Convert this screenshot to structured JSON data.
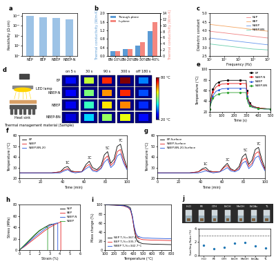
{
  "chart_data": [
    {
      "panel": "a",
      "type": "bar",
      "categories": [
        "NEP",
        "BEP",
        "NBEP",
        "NBEP-N"
      ],
      "values": [
        1.2e+16,
        2000000000000000.0,
        1500000000000000.0,
        400000000000000.0
      ],
      "color": "#9dc3e6",
      "ylabel": "Resistivity (Ω·cm)",
      "log": "y",
      "ylim": [
        1,
        1e+17
      ],
      "yticks": [
        {
          "value": 1,
          "label": "10⁰"
        },
        {
          "value": 10000,
          "label": "10⁴"
        },
        {
          "value": 100000000.0,
          "label": "10⁸"
        },
        {
          "value": 1000000000000.0,
          "label": "10¹²"
        },
        {
          "value": 1e+16,
          "label": "10¹⁶"
        }
      ]
    },
    {
      "panel": "b",
      "type": "bar",
      "categories": [
        "BN-10%",
        "BN-20%",
        "BN-30%",
        "BN-40%"
      ],
      "series": [
        {
          "name": "Through-plane",
          "color": "#5b9bd5",
          "values": [
            0.22,
            0.32,
            0.48,
            1.15
          ]
        },
        {
          "name": "In-plane",
          "color": "#f4877f",
          "values": [
            1.6,
            2.3,
            4.6,
            11.2
          ],
          "axis": "y2"
        }
      ],
      "ylabel": "Thermal conductivity (W/m·K)",
      "y2label": "Thermal conductivity (W/m·K)",
      "ylim": [
        0.0,
        2.0
      ],
      "yticks": [
        0.0,
        0.4,
        0.8,
        1.2,
        1.6,
        2.0
      ],
      "y2lim": [
        0,
        14
      ],
      "y2ticks": [
        0,
        2,
        4,
        6,
        8,
        10,
        12,
        14
      ],
      "legend": "upper left"
    },
    {
      "panel": "c",
      "type": "line",
      "xlabel": "Frequency (Hz)",
      "ylabel": "Dielectric constant",
      "log": "x",
      "x": [
        100,
        300,
        1000,
        3000,
        10000,
        30000,
        100000,
        300000,
        1000000
      ],
      "xlim": [
        100,
        1000000
      ],
      "xticks": [
        {
          "value": 100,
          "label": "10²"
        },
        {
          "value": 1000,
          "label": "10³"
        },
        {
          "value": 10000,
          "label": "10⁴"
        },
        {
          "value": 100000,
          "label": "10⁵"
        },
        {
          "value": 1000000,
          "label": "10⁶"
        }
      ],
      "ylim": [
        2.5,
        5.0
      ],
      "yticks": [
        2.5,
        3.0,
        3.5,
        4.0,
        4.5,
        5.0
      ],
      "legend": "upper right",
      "series": [
        {
          "name": "NEP",
          "color": "#f08080",
          "values": [
            3.95,
            3.9,
            3.85,
            3.8,
            3.75,
            3.7,
            3.65,
            3.6,
            3.55
          ]
        },
        {
          "name": "BEP",
          "color": "#f4a460",
          "values": [
            4.35,
            4.3,
            4.25,
            4.2,
            4.15,
            4.1,
            4.05,
            4.0,
            3.95
          ]
        },
        {
          "name": "NBEP",
          "color": "#6495ed",
          "values": [
            3.55,
            3.5,
            3.45,
            3.4,
            3.35,
            3.3,
            3.25,
            3.2,
            3.15
          ]
        },
        {
          "name": "NBEP-BN",
          "color": "#66cdaa",
          "values": [
            3.2,
            3.15,
            3.1,
            3.05,
            3.0,
            2.95,
            2.9,
            2.88,
            2.85
          ]
        }
      ]
    },
    {
      "panel": "d",
      "type": "heatmap",
      "rows": [
        "EP",
        "NBEP-N",
        "NBEP",
        "NBEP-BN"
      ],
      "columns": [
        "on 5 s",
        "30 s",
        "90 s",
        "300 s",
        "off 180 s"
      ],
      "cells": [
        [
          28,
          55,
          72,
          80,
          35
        ],
        [
          27,
          50,
          65,
          72,
          32
        ],
        [
          26,
          45,
          60,
          66,
          30
        ],
        [
          25,
          40,
          52,
          58,
          28
        ]
      ],
      "colorbar_range": [
        20,
        80
      ],
      "colorbar_ticks": [
        {
          "value": 20,
          "label": "20 °C"
        },
        {
          "value": 80,
          "label": "80 °C"
        }
      ],
      "annotations": [
        "LED lamp",
        "Heat sink",
        "Thermal management material (Sample)"
      ]
    },
    {
      "panel": "e",
      "type": "line",
      "xlabel": "Time (s)",
      "ylabel": "Temperature (°C)",
      "x": [
        0,
        10,
        25,
        50,
        75,
        100,
        150,
        200,
        250,
        300,
        305,
        315,
        330,
        350,
        400,
        450,
        500
      ],
      "xlim": [
        0,
        500
      ],
      "xticks": [
        0,
        100,
        200,
        300,
        400,
        500
      ],
      "ylim": [
        20,
        100
      ],
      "yticks": [
        20,
        40,
        60,
        80,
        100
      ],
      "legend": "upper right",
      "series": [
        {
          "name": "EP",
          "color": "#000000",
          "marker": "square",
          "values": [
            25,
            45,
            62,
            72,
            76,
            78,
            79,
            79,
            79,
            79,
            60,
            45,
            36,
            31,
            27,
            26,
            25
          ]
        },
        {
          "name": "NBEP-N",
          "color": "#e41a1c",
          "marker": "circle",
          "values": [
            25,
            42,
            57,
            66,
            70,
            72,
            73,
            73,
            73,
            73,
            56,
            42,
            34,
            30,
            27,
            26,
            25
          ]
        },
        {
          "name": "NBEP",
          "color": "#1f4fd8",
          "marker": "triangle",
          "values": [
            25,
            38,
            50,
            58,
            61,
            63,
            64,
            64,
            64,
            64,
            50,
            39,
            33,
            29,
            26,
            25,
            25
          ]
        },
        {
          "name": "NBEP-BN",
          "color": "#2ca02c",
          "marker": "diamond",
          "values": [
            25,
            35,
            45,
            51,
            53,
            55,
            56,
            56,
            56,
            56,
            45,
            36,
            31,
            28,
            26,
            25,
            25
          ]
        }
      ]
    },
    {
      "panel": "f",
      "type": "line",
      "xlabel": "Time (min)",
      "ylabel": "Temperature (°C)",
      "x": [
        0,
        10,
        20,
        30,
        38,
        42,
        45,
        48,
        52,
        58,
        62,
        65,
        68,
        72,
        76,
        79,
        82,
        85,
        88,
        91,
        94,
        97,
        100
      ],
      "xlim": [
        0,
        100
      ],
      "xticks": [
        0,
        20,
        40,
        60,
        80,
        100
      ],
      "ylim": [
        20,
        60
      ],
      "yticks": [
        20,
        30,
        40,
        50,
        60
      ],
      "legend": "upper left",
      "annotations": [
        {
          "text": "1C",
          "x": 45
        },
        {
          "text": "3C",
          "x": 65
        },
        {
          "text": "5C",
          "x": 82
        },
        {
          "text": "7C",
          "x": 94
        }
      ],
      "series": [
        {
          "name": "EP",
          "color": "#000000",
          "values": [
            25,
            25,
            25,
            25,
            26,
            30,
            31,
            27,
            26,
            26,
            33,
            36,
            30,
            28,
            32,
            42,
            45,
            34,
            38,
            50,
            52,
            40,
            30
          ]
        },
        {
          "name": "NBEP",
          "color": "#e41a1c",
          "values": [
            25,
            25,
            25,
            25,
            26,
            28,
            29,
            26,
            26,
            26,
            31,
            33,
            28,
            27,
            30,
            38,
            41,
            32,
            35,
            45,
            47,
            36,
            29
          ]
        },
        {
          "name": "NBEP-BN-20",
          "color": "#1f4fd8",
          "values": [
            25,
            25,
            25,
            25,
            25,
            27,
            28,
            26,
            25,
            26,
            29,
            31,
            27,
            26,
            29,
            35,
            38,
            30,
            33,
            41,
            43,
            34,
            28
          ]
        }
      ]
    },
    {
      "panel": "g",
      "type": "line",
      "xlabel": "Time (min)",
      "ylabel": "Temperature (°C)",
      "x": [
        0,
        10,
        20,
        30,
        38,
        42,
        45,
        48,
        52,
        58,
        62,
        65,
        68,
        72,
        76,
        79,
        82,
        85,
        88,
        91,
        94,
        97,
        100
      ],
      "xlim": [
        0,
        100
      ],
      "xticks": [
        0,
        20,
        40,
        60,
        80,
        100
      ],
      "ylim": [
        20,
        60
      ],
      "yticks": [
        20,
        30,
        40,
        50,
        60
      ],
      "legend": "upper left",
      "annotations": [
        {
          "text": "1C",
          "x": 45
        },
        {
          "text": "3C",
          "x": 65
        },
        {
          "text": "5C",
          "x": 82
        },
        {
          "text": "7C",
          "x": 94
        }
      ],
      "series": [
        {
          "name": "EP-Surface",
          "color": "#000000",
          "values": [
            25,
            25,
            25,
            25,
            26,
            29,
            30,
            27,
            26,
            26,
            31,
            34,
            29,
            27,
            31,
            40,
            43,
            33,
            37,
            47,
            49,
            38,
            29
          ]
        },
        {
          "name": "NBEP-Surface",
          "color": "#e41a1c",
          "values": [
            25,
            25,
            25,
            25,
            26,
            28,
            28,
            26,
            26,
            26,
            30,
            32,
            28,
            27,
            29,
            37,
            39,
            31,
            34,
            43,
            45,
            35,
            28
          ]
        },
        {
          "name": "NBEP-BN-20-Surface",
          "color": "#1f4fd8",
          "values": [
            25,
            25,
            25,
            25,
            25,
            26,
            27,
            26,
            25,
            26,
            28,
            30,
            27,
            26,
            28,
            34,
            36,
            29,
            32,
            39,
            41,
            33,
            27
          ]
        }
      ]
    },
    {
      "panel": "h",
      "type": "line",
      "xlabel": "Strain (%)",
      "ylabel": "Stress (MPa)",
      "xlim": [
        0,
        6
      ],
      "xticks": [
        0,
        1,
        2,
        3,
        4,
        5,
        6
      ],
      "ylim": [
        0,
        80
      ],
      "yticks": [
        0,
        20,
        40,
        60,
        80
      ],
      "legend": "upper right",
      "series": [
        {
          "name": "NEP",
          "color": "#000000",
          "x": [
            0,
            0.5,
            1,
            1.5,
            2,
            2.5,
            3,
            3.4,
            3.4
          ],
          "values": [
            0,
            8,
            17,
            26,
            34,
            40,
            45,
            46,
            0
          ]
        },
        {
          "name": "BEP",
          "color": "#e41a1c",
          "x": [
            0,
            0.5,
            1,
            1.5,
            2,
            2.5,
            3,
            3.5,
            4.0,
            4.1,
            4.1
          ],
          "values": [
            0,
            6,
            13,
            20,
            27,
            34,
            40,
            45,
            49,
            50,
            0
          ]
        },
        {
          "name": "NBEP-N",
          "color": "#1f4fd8",
          "x": [
            0,
            0.5,
            1,
            1.5,
            2,
            2.5,
            3,
            3.5,
            3.8,
            3.8
          ],
          "values": [
            0,
            7,
            15,
            23,
            30,
            37,
            43,
            47,
            48,
            0
          ]
        },
        {
          "name": "NBEP",
          "color": "#2ca02c",
          "x": [
            0,
            0.5,
            1,
            1.5,
            2,
            2.5,
            2.8,
            2.8
          ],
          "values": [
            0,
            9,
            18,
            27,
            35,
            40,
            41,
            0
          ]
        }
      ]
    },
    {
      "panel": "i",
      "type": "line",
      "xlabel": "Temperature (°C)",
      "ylabel": "Mass change (%)",
      "x": [
        100,
        200,
        300,
        330,
        350,
        370,
        390,
        410,
        430,
        450,
        500,
        600,
        700,
        800
      ],
      "xlim": [
        100,
        800
      ],
      "xticks": [
        100,
        200,
        300,
        400,
        500,
        600,
        700,
        800
      ],
      "ylim": [
        0,
        100
      ],
      "yticks": [
        0,
        20,
        40,
        60,
        80,
        100
      ],
      "legend": "lower left",
      "series": [
        {
          "name": "NEP T₅%=367.6°C",
          "color": "#000000",
          "values": [
            100,
            99.5,
            98.5,
            97.5,
            96,
            93,
            75,
            45,
            25,
            18,
            14,
            13,
            12.5,
            12
          ]
        },
        {
          "name": "BEP T₅%=335.7°C",
          "color": "#e41a1c",
          "values": [
            100,
            99.5,
            97.5,
            95,
            93,
            88,
            72,
            48,
            32,
            26,
            23,
            22,
            21.5,
            21
          ]
        },
        {
          "name": "NBEP T₅%=342.7°C",
          "color": "#1f4fd8",
          "values": [
            100,
            99.5,
            98,
            96,
            94,
            90,
            76,
            52,
            36,
            30,
            27,
            26,
            25.5,
            25
          ]
        }
      ]
    },
    {
      "panel": "j",
      "type": "scatter",
      "categories": [
        "H₂O",
        "PE",
        "CYH",
        "EtOH",
        "MeOH",
        "EtOAc",
        "TL"
      ],
      "values": [
        1.5,
        1.0,
        1.2,
        1.8,
        1.9,
        1.4,
        1.1
      ],
      "color": "#1f77b4",
      "ylabel": "Swelling Ratio (%)",
      "ylim": [
        0,
        4
      ],
      "yticks": [
        0,
        2,
        4
      ],
      "reference_line": 3
    }
  ]
}
